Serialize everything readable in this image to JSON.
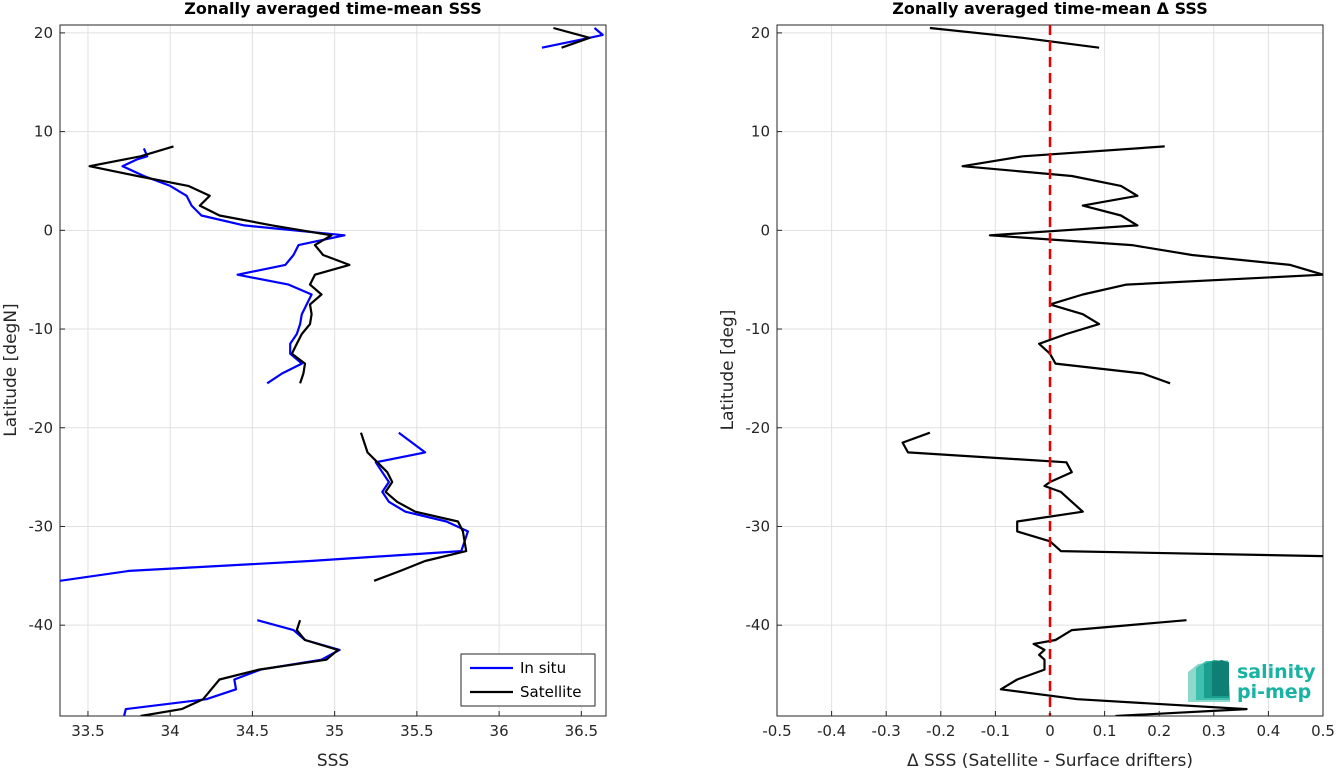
{
  "chart_data": [
    {
      "type": "line",
      "title": "Zonally averaged time-mean SSS",
      "xlabel": "SSS",
      "ylabel": "Latitude [degN]",
      "xlim": [
        33.33,
        36.65
      ],
      "ylim": [
        -49.2,
        20.8
      ],
      "xticks": [
        33.5,
        34,
        34.5,
        35,
        35.5,
        36,
        36.5
      ],
      "xtick_labels": [
        "33.5",
        "34",
        "34.5",
        "35",
        "35.5",
        "36",
        "36.5"
      ],
      "yticks": [
        -40,
        -30,
        -20,
        -10,
        0,
        10,
        20
      ],
      "ytick_labels": [
        "-40",
        "-30",
        "-20",
        "-10",
        "0",
        "10",
        "20"
      ],
      "grid": true,
      "legend_position": "bottom-right",
      "series": [
        {
          "name": "In situ",
          "color": "#0000ff",
          "segments": [
            [
              [
                36.26,
                18.5
              ],
              [
                36.55,
                19.5
              ],
              [
                36.63,
                19.8
              ],
              [
                36.58,
                20.5
              ]
            ],
            [
              [
                33.84,
                8.3
              ],
              [
                33.86,
                7.5
              ],
              [
                33.8,
                7.2
              ],
              [
                33.71,
                6.5
              ],
              [
                33.84,
                5.5
              ],
              [
                34.0,
                4.5
              ],
              [
                34.1,
                3.5
              ],
              [
                34.13,
                2.5
              ],
              [
                34.19,
                1.5
              ],
              [
                34.45,
                0.5
              ],
              [
                35.06,
                -0.5
              ],
              [
                34.78,
                -1.5
              ],
              [
                34.75,
                -2.5
              ],
              [
                34.7,
                -3.5
              ],
              [
                34.41,
                -4.5
              ],
              [
                34.72,
                -5.5
              ],
              [
                34.86,
                -6.5
              ],
              [
                34.83,
                -7.5
              ],
              [
                34.8,
                -8.5
              ],
              [
                34.79,
                -9.5
              ],
              [
                34.77,
                -10.5
              ],
              [
                34.73,
                -11.5
              ],
              [
                34.73,
                -12.5
              ],
              [
                34.8,
                -13.5
              ],
              [
                34.68,
                -14.5
              ],
              [
                34.59,
                -15.5
              ]
            ],
            [
              [
                35.39,
                -20.5
              ],
              [
                35.55,
                -22.5
              ],
              [
                35.25,
                -23.5
              ],
              [
                35.29,
                -24.5
              ],
              [
                35.33,
                -25.5
              ],
              [
                35.29,
                -26.5
              ],
              [
                35.33,
                -27.5
              ],
              [
                35.43,
                -28.5
              ],
              [
                35.68,
                -29.5
              ],
              [
                35.81,
                -30.5
              ],
              [
                35.77,
                -32.5
              ],
              [
                34.85,
                -33.5
              ],
              [
                33.75,
                -34.5
              ],
              [
                33.33,
                -35.5
              ]
            ],
            [
              [
                34.53,
                -39.5
              ],
              [
                34.75,
                -40.5
              ],
              [
                34.82,
                -41.5
              ],
              [
                35.03,
                -42.5
              ],
              [
                34.92,
                -43.5
              ],
              [
                34.55,
                -44.5
              ],
              [
                34.39,
                -45.5
              ],
              [
                34.4,
                -46.5
              ],
              [
                34.22,
                -47.5
              ],
              [
                33.73,
                -48.5
              ],
              [
                33.72,
                -49.2
              ]
            ]
          ]
        },
        {
          "name": "Satellite",
          "color": "#000000",
          "segments": [
            [
              [
                36.33,
                20.5
              ],
              [
                36.55,
                19.5
              ],
              [
                36.38,
                18.5
              ]
            ],
            [
              [
                34.02,
                8.5
              ],
              [
                33.82,
                7.5
              ],
              [
                33.51,
                6.5
              ],
              [
                33.8,
                5.5
              ],
              [
                34.11,
                4.5
              ],
              [
                34.24,
                3.5
              ],
              [
                34.18,
                2.5
              ],
              [
                34.3,
                1.5
              ],
              [
                34.62,
                0.5
              ],
              [
                34.98,
                -0.5
              ],
              [
                34.88,
                -1.5
              ],
              [
                34.93,
                -2.5
              ],
              [
                35.09,
                -3.5
              ],
              [
                34.88,
                -4.5
              ],
              [
                34.85,
                -5.5
              ],
              [
                34.92,
                -6.5
              ],
              [
                34.85,
                -7.5
              ],
              [
                34.86,
                -8.5
              ],
              [
                34.85,
                -9.5
              ],
              [
                34.8,
                -10.5
              ],
              [
                34.77,
                -11.5
              ],
              [
                34.74,
                -12.5
              ],
              [
                34.82,
                -13.5
              ],
              [
                34.81,
                -14.5
              ],
              [
                34.79,
                -15.5
              ]
            ],
            [
              [
                35.16,
                -20.5
              ],
              [
                35.2,
                -22.5
              ],
              [
                35.26,
                -23.5
              ],
              [
                35.32,
                -24.5
              ],
              [
                35.35,
                -25.5
              ],
              [
                35.31,
                -26.5
              ],
              [
                35.38,
                -27.5
              ],
              [
                35.49,
                -28.5
              ],
              [
                35.75,
                -29.5
              ],
              [
                35.78,
                -30.5
              ],
              [
                35.8,
                -32.5
              ],
              [
                35.55,
                -33.5
              ],
              [
                35.4,
                -34.5
              ],
              [
                35.24,
                -35.5
              ]
            ],
            [
              [
                34.79,
                -39.5
              ],
              [
                34.77,
                -40.5
              ],
              [
                34.82,
                -41.5
              ],
              [
                35.02,
                -42.5
              ],
              [
                34.95,
                -43.5
              ],
              [
                34.54,
                -44.5
              ],
              [
                34.3,
                -45.5
              ],
              [
                34.25,
                -46.5
              ],
              [
                34.2,
                -47.5
              ],
              [
                34.07,
                -48.5
              ],
              [
                33.82,
                -49.2
              ]
            ]
          ]
        }
      ]
    },
    {
      "type": "line",
      "title": "Zonally averaged time-mean Δ SSS",
      "xlabel": "Δ SSS (Satellite - Surface drifters)",
      "ylabel": "Latitude [deg]",
      "xlim": [
        -0.5,
        0.5
      ],
      "ylim": [
        -49.2,
        20.8
      ],
      "xticks": [
        -0.5,
        -0.4,
        -0.3,
        -0.2,
        -0.1,
        0,
        0.1,
        0.2,
        0.3,
        0.4,
        0.5
      ],
      "xtick_labels": [
        "-0.5",
        "-0.4",
        "-0.3",
        "-0.2",
        "-0.1",
        "0",
        "0.1",
        "0.2",
        "0.3",
        "0.4",
        "0.5"
      ],
      "yticks": [
        -40,
        -30,
        -20,
        -10,
        0,
        10,
        20
      ],
      "ytick_labels": [
        "-40",
        "-30",
        "-20",
        "-10",
        "0",
        "10",
        "20"
      ],
      "grid": true,
      "zero_line": {
        "x": 0,
        "color": "#e60000",
        "style": "dashed"
      },
      "series": [
        {
          "color": "#000000",
          "segments": [
            [
              [
                -0.22,
                20.5
              ],
              [
                -0.05,
                19.5
              ],
              [
                0.09,
                18.5
              ]
            ],
            [
              [
                0.21,
                8.5
              ],
              [
                -0.05,
                7.5
              ],
              [
                -0.16,
                6.5
              ],
              [
                0.04,
                5.5
              ],
              [
                0.13,
                4.5
              ],
              [
                0.16,
                3.5
              ],
              [
                0.06,
                2.5
              ],
              [
                0.13,
                1.5
              ],
              [
                0.16,
                0.5
              ],
              [
                -0.11,
                -0.5
              ],
              [
                0.15,
                -1.5
              ],
              [
                0.26,
                -2.5
              ],
              [
                0.44,
                -3.5
              ],
              [
                0.5,
                -4.5
              ],
              [
                0.14,
                -5.5
              ],
              [
                0.06,
                -6.5
              ],
              [
                0.0,
                -7.5
              ],
              [
                0.06,
                -8.5
              ],
              [
                0.09,
                -9.5
              ],
              [
                0.03,
                -10.5
              ],
              [
                -0.02,
                -11.5
              ],
              [
                0.0,
                -12.5
              ],
              [
                0.01,
                -13.5
              ],
              [
                0.17,
                -14.5
              ],
              [
                0.22,
                -15.5
              ]
            ],
            [
              [
                -0.22,
                -20.5
              ],
              [
                -0.27,
                -21.5
              ],
              [
                -0.26,
                -22.5
              ],
              [
                0.03,
                -23.5
              ],
              [
                0.04,
                -24.5
              ],
              [
                0.0,
                -25.5
              ],
              [
                -0.01,
                -25.9
              ],
              [
                0.02,
                -26.5
              ],
              [
                0.04,
                -27.5
              ],
              [
                0.06,
                -28.5
              ],
              [
                -0.06,
                -29.5
              ],
              [
                -0.06,
                -30.5
              ],
              [
                0.0,
                -31.5
              ],
              [
                0.02,
                -32.5
              ],
              [
                0.5,
                -33.0
              ]
            ],
            [
              [
                0.25,
                -39.5
              ],
              [
                0.04,
                -40.5
              ],
              [
                0.01,
                -41.5
              ],
              [
                -0.03,
                -41.9
              ],
              [
                -0.01,
                -42.5
              ],
              [
                -0.02,
                -43.0
              ],
              [
                -0.01,
                -43.5
              ],
              [
                -0.01,
                -44.5
              ],
              [
                -0.06,
                -45.5
              ],
              [
                -0.09,
                -46.5
              ],
              [
                0.05,
                -47.5
              ],
              [
                0.36,
                -48.5
              ],
              [
                0.12,
                -49.2
              ]
            ]
          ]
        }
      ]
    }
  ],
  "legend": {
    "items": [
      "In situ",
      "Satellite"
    ]
  },
  "logo": {
    "line1": "salinity",
    "line2": "pi-mep"
  }
}
